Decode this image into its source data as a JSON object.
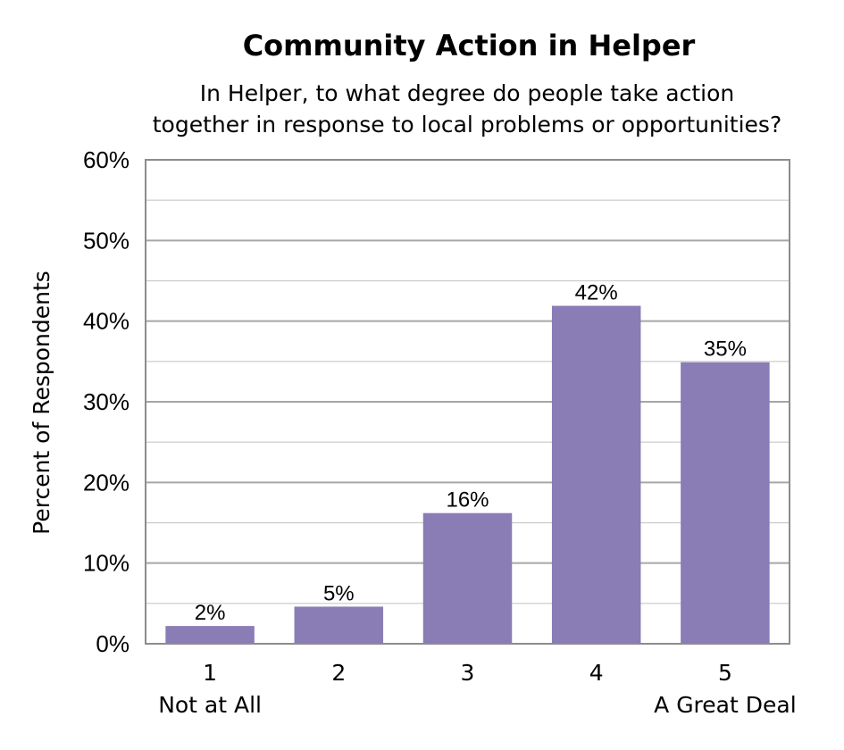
{
  "chart_data": {
    "type": "bar",
    "title": "Community Action in Helper",
    "subtitle_lines": [
      "In Helper, to what degree do people take action",
      "together in response to local problems or opportunities?"
    ],
    "ylabel": "Percent of Respondents",
    "xlabel": "",
    "categories": [
      "1",
      "2",
      "3",
      "4",
      "5"
    ],
    "category_sublabels": [
      "Not at All",
      "",
      "",
      "",
      "A Great Deal"
    ],
    "values": [
      2.2,
      4.6,
      16.2,
      41.9,
      34.9
    ],
    "data_labels": [
      "2%",
      "5%",
      "16%",
      "42%",
      "35%"
    ],
    "ylim": [
      0,
      60
    ],
    "yticks": [
      0,
      10,
      20,
      30,
      40,
      50,
      60
    ],
    "ytick_labels": [
      "0%",
      "10%",
      "20%",
      "30%",
      "40%",
      "50%",
      "60%"
    ],
    "minor_gridlines_every": 5,
    "grid": true,
    "legend": "none",
    "bar_color": "#8a7cb5",
    "grid_color": "#a6a6a6",
    "axis_color": "#8c8c8c"
  }
}
